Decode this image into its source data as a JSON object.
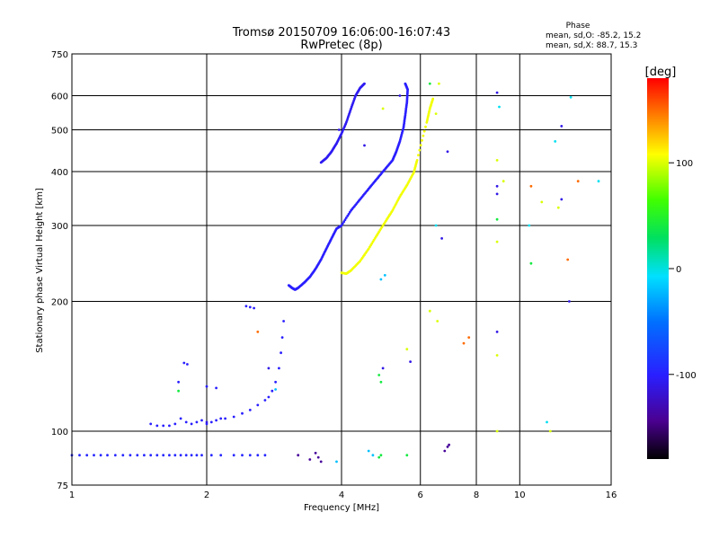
{
  "chart_data": {
    "type": "scatter",
    "title": "Tromsø 20150709 16:06:00-16:07:43",
    "subtitle": "RwPretec (8p)",
    "xlabel": "Frequency [MHz]",
    "ylabel": "Stationary phase Virtual Height [km]",
    "x_scale": "log",
    "y_scale": "log",
    "xlim": [
      1,
      16
    ],
    "ylim": [
      75,
      750
    ],
    "x_ticks": [
      1,
      2,
      4,
      6,
      8,
      10,
      16
    ],
    "y_ticks": [
      75,
      100,
      200,
      300,
      400,
      500,
      600,
      750
    ],
    "grid": true,
    "phase_box": {
      "heading": "Phase",
      "line1": "mean, sd,O: -85.2, 15.2",
      "line2": "mean, sd,X: 88.7, 15.3"
    },
    "colorbar": {
      "label": "[deg]",
      "range": [
        -180,
        180
      ],
      "ticks": [
        100,
        0,
        -100
      ],
      "colormap": "rainbow"
    },
    "point_color": "phase_deg",
    "series": [
      {
        "type": "points",
        "phase": -95,
        "points": [
          [
            1.0,
            88
          ],
          [
            1.04,
            88
          ],
          [
            1.08,
            88
          ],
          [
            1.12,
            88
          ],
          [
            1.16,
            88
          ],
          [
            1.2,
            88
          ],
          [
            1.25,
            88
          ],
          [
            1.3,
            88
          ],
          [
            1.35,
            88
          ],
          [
            1.4,
            88
          ],
          [
            1.45,
            88
          ],
          [
            1.5,
            88
          ],
          [
            1.55,
            88
          ],
          [
            1.6,
            88
          ],
          [
            1.65,
            88
          ],
          [
            1.7,
            88
          ],
          [
            1.75,
            88
          ],
          [
            1.8,
            88
          ],
          [
            1.85,
            88
          ],
          [
            1.9,
            88
          ],
          [
            1.95,
            88
          ],
          [
            2.05,
            88
          ],
          [
            2.15,
            88
          ],
          [
            2.3,
            88
          ],
          [
            2.4,
            88
          ],
          [
            2.5,
            88
          ],
          [
            2.6,
            88
          ],
          [
            2.7,
            88
          ]
        ]
      },
      {
        "type": "points",
        "phase": -100,
        "points": [
          [
            1.5,
            104
          ],
          [
            1.55,
            103
          ],
          [
            1.6,
            103
          ],
          [
            1.65,
            103
          ],
          [
            1.7,
            104
          ],
          [
            1.75,
            107
          ],
          [
            1.8,
            105
          ],
          [
            1.85,
            104
          ],
          [
            1.9,
            105
          ],
          [
            1.95,
            106
          ],
          [
            2.0,
            104
          ],
          [
            2.05,
            105
          ],
          [
            2.1,
            106
          ],
          [
            2.15,
            107
          ],
          [
            2.2,
            107
          ],
          [
            2.3,
            108
          ],
          [
            2.4,
            110
          ],
          [
            2.5,
            112
          ],
          [
            2.6,
            115
          ],
          [
            2.7,
            118
          ],
          [
            2.75,
            120
          ],
          [
            2.8,
            124
          ],
          [
            2.85,
            130
          ],
          [
            2.9,
            140
          ],
          [
            2.93,
            152
          ],
          [
            2.95,
            165
          ],
          [
            2.97,
            180
          ],
          [
            1.78,
            144
          ],
          [
            1.81,
            143
          ],
          [
            1.73,
            130
          ],
          [
            2.0,
            127
          ],
          [
            2.1,
            126
          ],
          [
            2.45,
            195
          ],
          [
            2.5,
            194
          ],
          [
            2.55,
            193
          ]
        ]
      },
      {
        "type": "curve",
        "phase": -100,
        "points": [
          [
            3.05,
            218
          ],
          [
            3.1,
            215
          ],
          [
            3.15,
            213
          ],
          [
            3.2,
            215
          ],
          [
            3.3,
            221
          ],
          [
            3.4,
            228
          ],
          [
            3.5,
            238
          ],
          [
            3.6,
            250
          ],
          [
            3.7,
            265
          ],
          [
            3.8,
            280
          ],
          [
            3.9,
            295
          ],
          [
            4.0,
            300
          ],
          [
            4.2,
            325
          ],
          [
            4.4,
            345
          ],
          [
            4.6,
            365
          ],
          [
            4.8,
            385
          ],
          [
            5.0,
            405
          ],
          [
            5.2,
            425
          ],
          [
            5.3,
            445
          ],
          [
            5.4,
            470
          ],
          [
            5.5,
            505
          ],
          [
            5.55,
            540
          ],
          [
            5.6,
            580
          ],
          [
            5.62,
            620
          ],
          [
            5.55,
            640
          ]
        ]
      },
      {
        "type": "curve",
        "phase": -105,
        "points": [
          [
            3.6,
            420
          ],
          [
            3.7,
            430
          ],
          [
            3.8,
            445
          ],
          [
            3.9,
            465
          ],
          [
            4.0,
            490
          ],
          [
            4.1,
            520
          ],
          [
            4.2,
            560
          ],
          [
            4.3,
            600
          ],
          [
            4.4,
            625
          ],
          [
            4.5,
            640
          ]
        ]
      },
      {
        "type": "curve",
        "phase": 105,
        "points": [
          [
            4.0,
            233
          ],
          [
            4.1,
            232
          ],
          [
            4.2,
            236
          ],
          [
            4.4,
            248
          ],
          [
            4.6,
            265
          ],
          [
            4.8,
            285
          ],
          [
            5.0,
            305
          ],
          [
            5.2,
            325
          ],
          [
            5.4,
            350
          ],
          [
            5.6,
            372
          ],
          [
            5.8,
            398
          ],
          [
            5.9,
            425
          ],
          [
            6.2,
            520
          ],
          [
            6.3,
            560
          ],
          [
            6.4,
            590
          ]
        ]
      },
      {
        "type": "points",
        "phase": 40,
        "points": [
          [
            4.85,
            87
          ],
          [
            4.9,
            88
          ],
          [
            4.85,
            135
          ],
          [
            5.6,
            88
          ],
          [
            1.73,
            124
          ]
        ]
      },
      {
        "type": "points",
        "phase": -20,
        "points": [
          [
            4.7,
            88
          ],
          [
            4.6,
            90
          ],
          [
            3.9,
            85
          ],
          [
            2.85,
            125
          ],
          [
            5.0,
            230
          ],
          [
            4.9,
            225
          ]
        ]
      },
      {
        "type": "points",
        "phase": -140,
        "points": [
          [
            3.2,
            88
          ],
          [
            3.4,
            86
          ],
          [
            3.6,
            85
          ],
          [
            3.55,
            87
          ],
          [
            6.8,
            90
          ],
          [
            6.9,
            92
          ],
          [
            6.95,
            93
          ],
          [
            3.5,
            89
          ]
        ]
      },
      {
        "type": "points",
        "phase": 150,
        "points": [
          [
            2.6,
            170
          ],
          [
            7.7,
            165
          ],
          [
            10.6,
            370
          ],
          [
            12.8,
            250
          ],
          [
            13.5,
            380
          ],
          [
            7.5,
            160
          ]
        ]
      },
      {
        "type": "points",
        "phase": -110,
        "points": [
          [
            8.9,
            610
          ],
          [
            8.9,
            370
          ],
          [
            8.9,
            355
          ],
          [
            8.9,
            170
          ],
          [
            12.4,
            510
          ],
          [
            12.4,
            345
          ],
          [
            12.9,
            200
          ],
          [
            6.9,
            445
          ],
          [
            6.7,
            280
          ],
          [
            5.7,
            145
          ],
          [
            4.95,
            140
          ],
          [
            2.75,
            140
          ],
          [
            2.0,
            105
          ],
          [
            5.4,
            600
          ],
          [
            4.5,
            460
          ],
          [
            3.95,
            500
          ]
        ]
      },
      {
        "type": "points",
        "phase": 100,
        "points": [
          [
            8.9,
            425
          ],
          [
            9.2,
            380
          ],
          [
            8.9,
            275
          ],
          [
            8.9,
            150
          ],
          [
            8.9,
            100
          ],
          [
            11.2,
            340
          ],
          [
            12.2,
            330
          ],
          [
            11.7,
            100
          ],
          [
            6.3,
            190
          ],
          [
            6.55,
            180
          ],
          [
            5.6,
            155
          ],
          [
            6.6,
            640
          ],
          [
            6.5,
            545
          ],
          [
            4.95,
            560
          ]
        ]
      },
      {
        "type": "points",
        "phase": 40,
        "points": [
          [
            8.9,
            310
          ],
          [
            10.6,
            245
          ],
          [
            6.3,
            640
          ],
          [
            4.9,
            130
          ]
        ]
      },
      {
        "type": "points",
        "phase": -5,
        "points": [
          [
            9.0,
            565
          ],
          [
            13.0,
            595
          ],
          [
            11.5,
            105
          ],
          [
            12.0,
            470
          ],
          [
            15.0,
            380
          ],
          [
            10.5,
            300
          ],
          [
            6.5,
            300
          ]
        ]
      }
    ]
  }
}
